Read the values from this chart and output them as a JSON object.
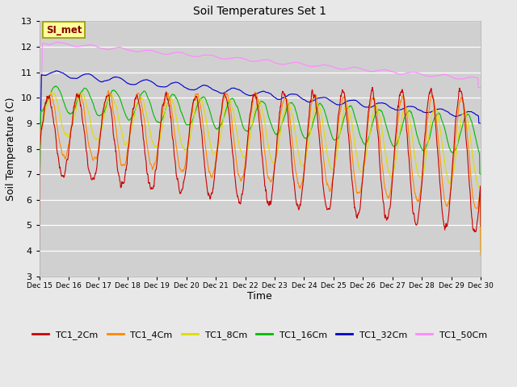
{
  "title": "Soil Temperatures Set 1",
  "xlabel": "Time",
  "ylabel": "Soil Temperature (C)",
  "ylim": [
    3.0,
    13.0
  ],
  "yticks": [
    3.0,
    4.0,
    5.0,
    6.0,
    7.0,
    8.0,
    9.0,
    10.0,
    11.0,
    12.0,
    13.0
  ],
  "xlim_days": [
    15,
    30
  ],
  "series_colors": {
    "TC1_2Cm": "#cc0000",
    "TC1_4Cm": "#ff8800",
    "TC1_8Cm": "#dddd00",
    "TC1_16Cm": "#00bb00",
    "TC1_32Cm": "#0000cc",
    "TC1_50Cm": "#ff88ff"
  },
  "fig_bg_color": "#e8e8e8",
  "plot_bg_color": "#d0d0d0",
  "grid_color": "#ffffff",
  "label_box_text": "SI_met",
  "label_box_facecolor": "#ffff99",
  "label_box_edgecolor": "#999900",
  "label_box_textcolor": "#880000",
  "n_points": 1440
}
